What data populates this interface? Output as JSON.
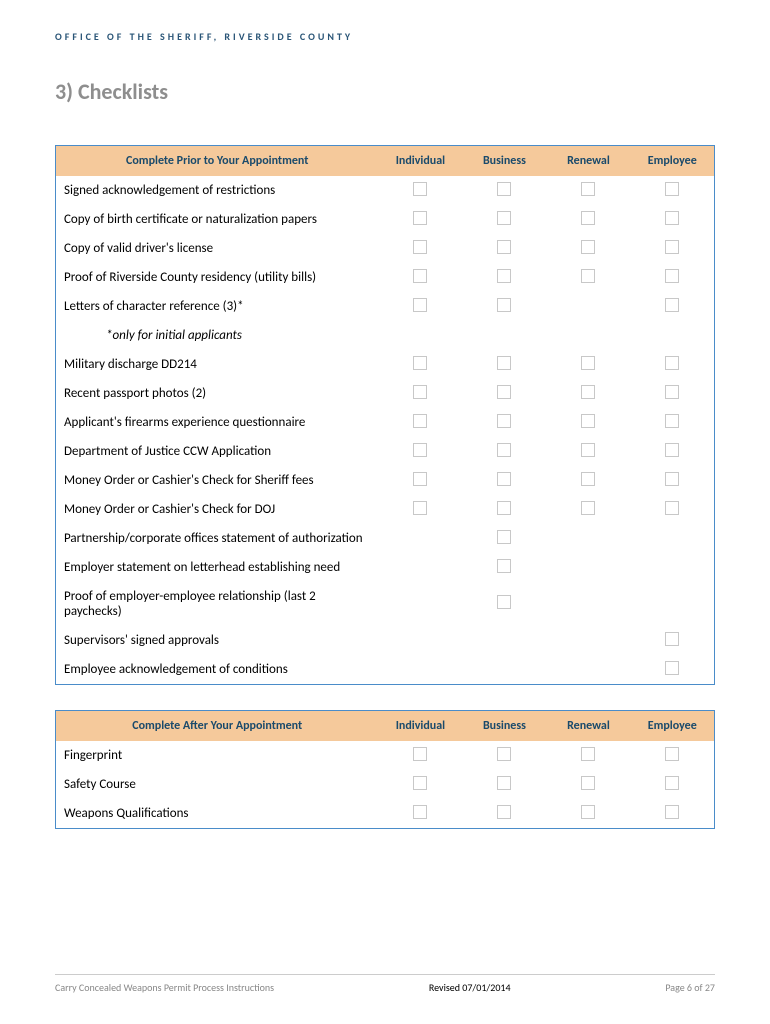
{
  "header": "OFFICE OF THE SHERIFF, RIVERSIDE COUNTY",
  "sectionTitle": "3)   Checklists",
  "columns": [
    "Individual",
    "Business",
    "Renewal",
    "Employee"
  ],
  "table1": {
    "title": "Complete Prior to Your Appointment",
    "rows": [
      {
        "label": "Signed acknowledgement of restrictions",
        "checks": [
          true,
          true,
          true,
          true
        ]
      },
      {
        "label": "Copy of birth certificate or naturalization papers",
        "checks": [
          true,
          true,
          true,
          true
        ]
      },
      {
        "label": "Copy of valid driver's license",
        "checks": [
          true,
          true,
          true,
          true
        ]
      },
      {
        "label": "Proof of Riverside County residency (utility bills)",
        "checks": [
          true,
          true,
          true,
          true
        ]
      },
      {
        "label": "Letters of character reference (3)*",
        "checks": [
          true,
          true,
          false,
          true
        ]
      },
      {
        "label": "*only for initial applicants",
        "note": true
      },
      {
        "label": "Military discharge DD214",
        "checks": [
          true,
          true,
          true,
          true
        ]
      },
      {
        "label": "Recent passport photos (2)",
        "checks": [
          true,
          true,
          true,
          true
        ]
      },
      {
        "label": "Applicant's firearms experience questionnaire",
        "checks": [
          true,
          true,
          true,
          true
        ]
      },
      {
        "label": "Department of Justice CCW Application",
        "checks": [
          true,
          true,
          true,
          true
        ]
      },
      {
        "label": "Money Order or Cashier's Check for Sheriff fees",
        "checks": [
          true,
          true,
          true,
          true
        ]
      },
      {
        "label": "Money Order or Cashier's Check for DOJ",
        "checks": [
          true,
          true,
          true,
          true
        ]
      },
      {
        "label": "Partnership/corporate offices statement of authorization",
        "checks": [
          false,
          true,
          false,
          false
        ]
      },
      {
        "label": "Employer statement on letterhead establishing need",
        "checks": [
          false,
          true,
          false,
          false
        ]
      },
      {
        "label": "Proof of employer-employee relationship (last 2 paychecks)",
        "checks": [
          false,
          true,
          false,
          false
        ]
      },
      {
        "label": "Supervisors' signed approvals",
        "checks": [
          false,
          false,
          false,
          true
        ]
      },
      {
        "label": "Employee acknowledgement of conditions",
        "checks": [
          false,
          false,
          false,
          true
        ]
      }
    ]
  },
  "table2": {
    "title": "Complete After Your Appointment",
    "rows": [
      {
        "label": "Fingerprint",
        "checks": [
          true,
          true,
          true,
          true
        ]
      },
      {
        "label": "Safety Course",
        "checks": [
          true,
          true,
          true,
          true
        ]
      },
      {
        "label": "Weapons Qualifications",
        "checks": [
          true,
          true,
          true,
          true
        ]
      }
    ]
  },
  "footer": {
    "left": "Carry Concealed Weapons Permit Process Instructions",
    "center": "Revised 07/01/2014",
    "right": "Page 6 of 27"
  }
}
